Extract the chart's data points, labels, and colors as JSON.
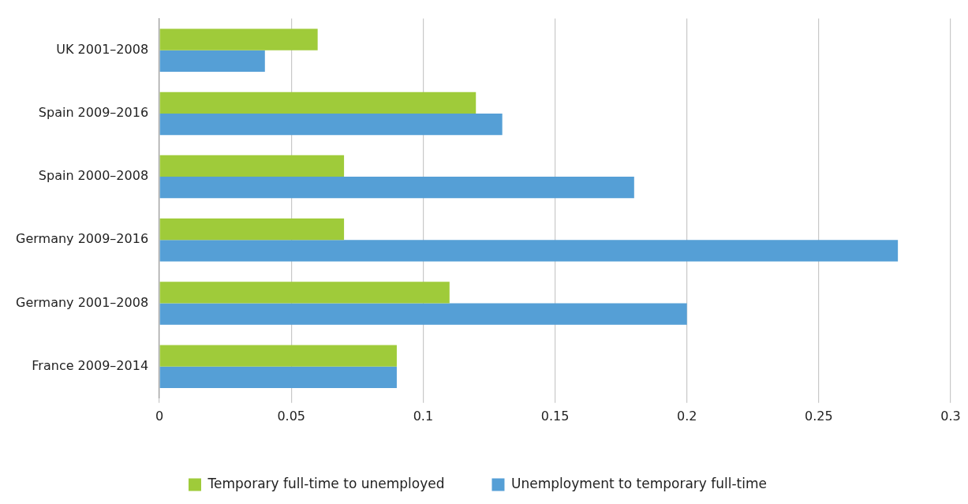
{
  "chart_data": {
    "type": "bar",
    "orientation": "horizontal",
    "categories": [
      "UK 2001–2008",
      "Spain 2009–2016",
      "Spain 2000–2008",
      "Germany 2009–2016",
      "Germany 2001–2008",
      "France 2009–2014"
    ],
    "series": [
      {
        "name": "Temporary full-time to unemployed",
        "color": "#9fcb3a",
        "values": [
          0.06,
          0.12,
          0.07,
          0.07,
          0.11,
          0.09
        ]
      },
      {
        "name": "Unemployment to temporary full-time",
        "color": "#559fd6",
        "values": [
          0.04,
          0.13,
          0.18,
          0.28,
          0.2,
          0.09
        ]
      }
    ],
    "xlim": [
      0,
      0.3
    ],
    "xticks": [
      0,
      0.05,
      0.1,
      0.15,
      0.2,
      0.25,
      0.3
    ],
    "grid": "x",
    "legend": "bottom"
  }
}
